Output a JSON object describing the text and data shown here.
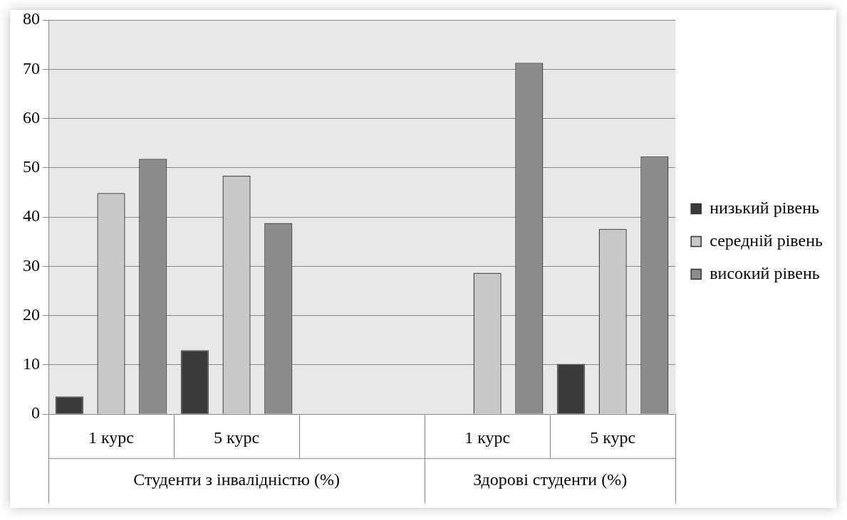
{
  "chart_data": {
    "type": "bar",
    "categories": [
      "1 курс",
      "5 курс",
      null,
      "1 курс",
      "5 курс"
    ],
    "series": [
      {
        "name": "низький рівень",
        "color": "#3a3a3a",
        "values": [
          3.6,
          13.0,
          null,
          null,
          10.2
        ]
      },
      {
        "name": "середній рівень",
        "color": "#c8c8c8",
        "values": [
          44.9,
          48.4,
          null,
          28.7,
          37.6
        ]
      },
      {
        "name": "високий рівень",
        "color": "#8c8c8c",
        "values": [
          51.8,
          38.8,
          null,
          71.3,
          52.3
        ]
      }
    ],
    "ylim": [
      0,
      80
    ],
    "yticks": [
      0,
      10,
      20,
      30,
      40,
      50,
      60,
      70,
      80
    ],
    "grid": "y",
    "legend": "right",
    "annotations": [
      "Студенти з інвалідністю (%)",
      "Здорові студенти (%)"
    ]
  }
}
